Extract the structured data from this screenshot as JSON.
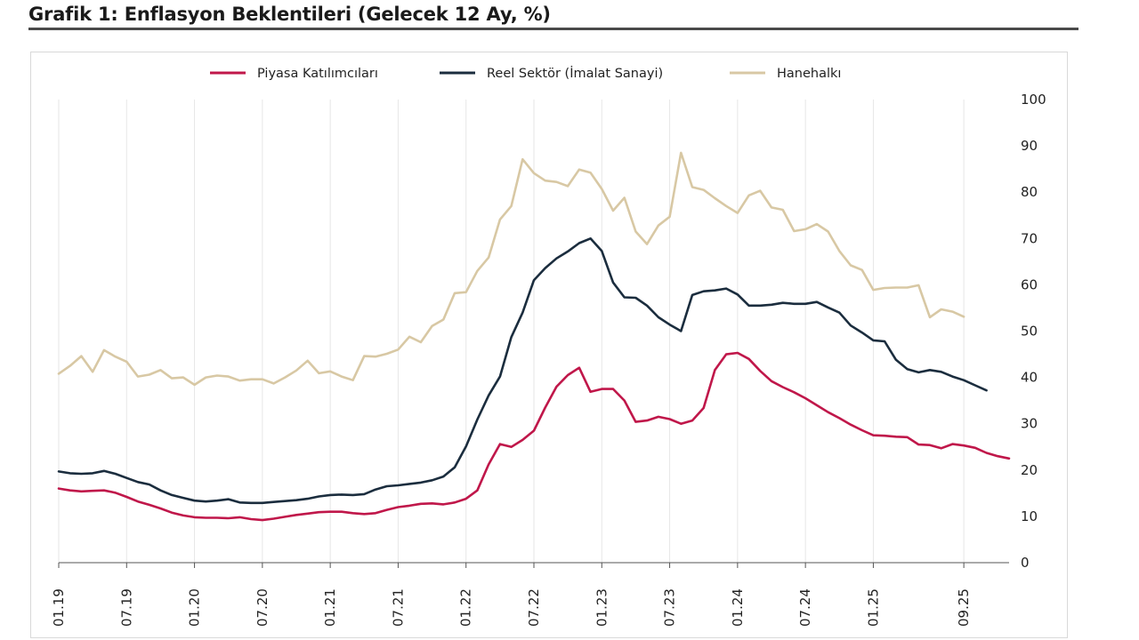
{
  "title": "Grafik 1: Enflasyon Beklentileri (Gelecek 12 Ay, %)",
  "chart_data": {
    "type": "line",
    "title": "Grafik 1: Enflasyon Beklentileri (Gelecek 12 Ay, %)",
    "xlabel": "",
    "ylabel": "",
    "ylim": [
      0,
      100
    ],
    "yticks": [
      "0",
      "10",
      "20",
      "30",
      "40",
      "50",
      "60",
      "70",
      "80",
      "90",
      "100"
    ],
    "y_axis_side": "right",
    "grid": "vertical",
    "legend_position": "top-center",
    "x_start": "01.19",
    "x_end": "09.25",
    "xtick_labels": [
      "01.19",
      "07.19",
      "01.20",
      "07.20",
      "01.21",
      "07.21",
      "01.22",
      "07.22",
      "01.23",
      "07.23",
      "01.24",
      "07.24",
      "01.25",
      "09.25"
    ],
    "series": [
      {
        "name": "Piyasa Katılımcıları",
        "color": "#c0174a",
        "values": [
          16.0,
          15.6,
          15.4,
          15.5,
          15.6,
          15.1,
          14.2,
          13.2,
          12.5,
          11.7,
          10.8,
          10.2,
          9.8,
          9.7,
          9.7,
          9.6,
          9.8,
          9.4,
          9.2,
          9.5,
          9.9,
          10.3,
          10.6,
          10.9,
          11.0,
          11.0,
          10.7,
          10.5,
          10.7,
          11.4,
          12.0,
          12.3,
          12.7,
          12.8,
          12.6,
          13.0,
          13.8,
          15.6,
          21.2,
          25.6,
          25.0,
          26.5,
          28.5,
          33.5,
          38.0,
          40.5,
          42.1,
          36.9,
          37.5,
          37.5,
          35.0,
          30.4,
          30.7,
          31.5,
          31.0,
          30.0,
          30.7,
          33.4,
          41.6,
          45.0,
          45.3,
          44.0,
          41.4,
          39.2,
          37.9,
          36.8,
          35.5,
          34.0,
          32.5,
          31.2,
          29.8,
          28.6,
          27.5,
          27.4,
          27.2,
          27.1,
          25.5,
          25.4,
          24.7,
          25.6,
          25.3,
          24.8,
          23.7,
          23.0,
          22.5
        ]
      },
      {
        "name": "Reel Sektör (İmalat Sanayi)",
        "color": "#1b2d3e",
        "values": [
          19.7,
          19.3,
          19.2,
          19.3,
          19.8,
          19.2,
          18.3,
          17.4,
          16.9,
          15.6,
          14.6,
          14.0,
          13.4,
          13.2,
          13.4,
          13.7,
          13.0,
          12.9,
          12.9,
          13.1,
          13.3,
          13.5,
          13.8,
          14.3,
          14.6,
          14.7,
          14.6,
          14.8,
          15.8,
          16.5,
          16.7,
          17.0,
          17.3,
          17.8,
          18.6,
          20.6,
          25.1,
          30.9,
          36.1,
          40.2,
          48.7,
          54.0,
          61.0,
          63.6,
          65.7,
          67.2,
          69.0,
          70.0,
          67.3,
          60.5,
          57.3,
          57.2,
          55.5,
          53.0,
          51.4,
          50.0,
          57.8,
          58.6,
          58.8,
          59.2,
          57.9,
          55.5,
          55.5,
          55.7,
          56.1,
          55.9,
          55.9,
          56.3,
          55.1,
          54.0,
          51.2,
          49.7,
          48.0,
          47.8,
          43.8,
          41.8,
          41.1,
          41.6,
          41.2,
          40.2,
          39.4,
          38.3,
          37.2
        ]
      },
      {
        "name": "Hanehalkı",
        "color": "#d8c8a4",
        "values": [
          40.8,
          42.5,
          44.6,
          41.2,
          45.9,
          44.5,
          43.4,
          40.2,
          40.6,
          41.6,
          39.8,
          40.0,
          38.4,
          40.0,
          40.4,
          40.2,
          39.3,
          39.6,
          39.6,
          38.7,
          40.0,
          41.5,
          43.6,
          40.9,
          41.3,
          40.2,
          39.4,
          44.6,
          44.5,
          45.1,
          46.0,
          48.8,
          47.6,
          51.1,
          52.5,
          58.2,
          58.4,
          63.0,
          65.9,
          74.1,
          77.0,
          87.1,
          84.1,
          82.5,
          82.2,
          81.3,
          84.9,
          84.2,
          80.7,
          76.0,
          78.8,
          71.5,
          68.8,
          72.8,
          74.7,
          88.5,
          81.1,
          80.5,
          78.7,
          77.0,
          75.5,
          79.3,
          80.3,
          76.7,
          76.2,
          71.6,
          72.0,
          73.1,
          71.5,
          67.3,
          64.2,
          63.2,
          58.9,
          59.3,
          59.4,
          59.4,
          59.9,
          53.0,
          54.7,
          54.2,
          53.1
        ]
      }
    ]
  }
}
